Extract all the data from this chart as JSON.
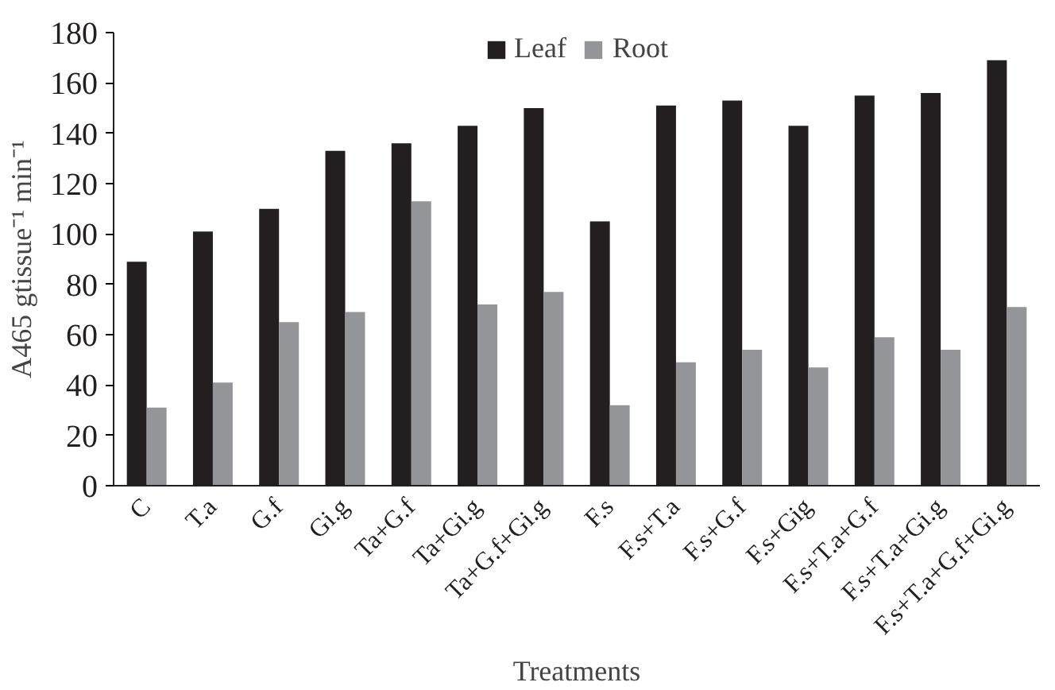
{
  "chart_data": {
    "type": "bar",
    "xlabel": "Treatments",
    "ylabel": "A465 gtissue⁻¹ min⁻¹",
    "categories": [
      "C",
      "T.a",
      "G.f",
      "Gi.g",
      "Ta+G.f",
      "Ta+Gi.g",
      "Ta+G.f+Gi.g",
      "F.s",
      "F.s+T.a",
      "F.s+G.f",
      "F.s+Gig",
      "F.s+T.a+G.f",
      "F.s+T.a+Gi.g",
      "F.s+T.a+G.f+Gi.g"
    ],
    "series": [
      {
        "name": "Leaf",
        "color": "#231f20",
        "values": [
          89,
          101,
          110,
          133,
          136,
          143,
          150,
          105,
          151,
          153,
          143,
          155,
          156,
          169
        ]
      },
      {
        "name": "Root",
        "color": "#939598",
        "values": [
          31,
          41,
          65,
          69,
          113,
          72,
          77,
          32,
          49,
          54,
          47,
          59,
          54,
          71
        ]
      }
    ],
    "ylim": [
      0,
      180
    ],
    "yticks": [
      0,
      20,
      40,
      60,
      80,
      100,
      120,
      140,
      160,
      180
    ],
    "grid": false,
    "legend": "top"
  }
}
